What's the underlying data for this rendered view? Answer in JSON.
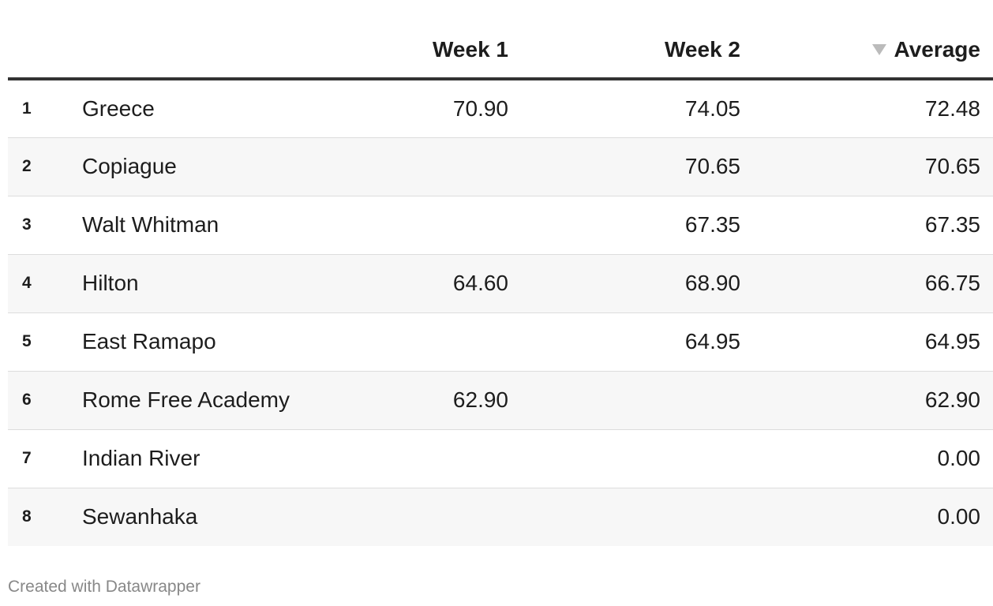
{
  "chart_data": {
    "type": "table",
    "columns": [
      "",
      "",
      "Week 1",
      "Week 2",
      "Average"
    ],
    "sort": {
      "column": "Average",
      "direction": "descending"
    },
    "rows": [
      {
        "rank": "1",
        "name": "Greece",
        "week1": "70.90",
        "week2": "74.05",
        "average": "72.48"
      },
      {
        "rank": "2",
        "name": "Copiague",
        "week1": "",
        "week2": "70.65",
        "average": "70.65"
      },
      {
        "rank": "3",
        "name": "Walt Whitman",
        "week1": "",
        "week2": "67.35",
        "average": "67.35"
      },
      {
        "rank": "4",
        "name": "Hilton",
        "week1": "64.60",
        "week2": "68.90",
        "average": "66.75"
      },
      {
        "rank": "5",
        "name": "East Ramapo",
        "week1": "",
        "week2": "64.95",
        "average": "64.95"
      },
      {
        "rank": "6",
        "name": "Rome Free Academy",
        "week1": "62.90",
        "week2": "",
        "average": "62.90"
      },
      {
        "rank": "7",
        "name": "Indian River",
        "week1": "",
        "week2": "",
        "average": "0.00"
      },
      {
        "rank": "8",
        "name": "Sewanhaka",
        "week1": "",
        "week2": "",
        "average": "0.00"
      }
    ]
  },
  "colors": {
    "header_rule": "#333333",
    "row_alt": "#f7f7f7",
    "row_border": "#dddddd",
    "sort_icon": "#bbbbbb",
    "footer_text": "#888888"
  },
  "icons": {
    "sort": "sort-descending-icon"
  },
  "footer": {
    "credit": "Created with Datawrapper"
  }
}
